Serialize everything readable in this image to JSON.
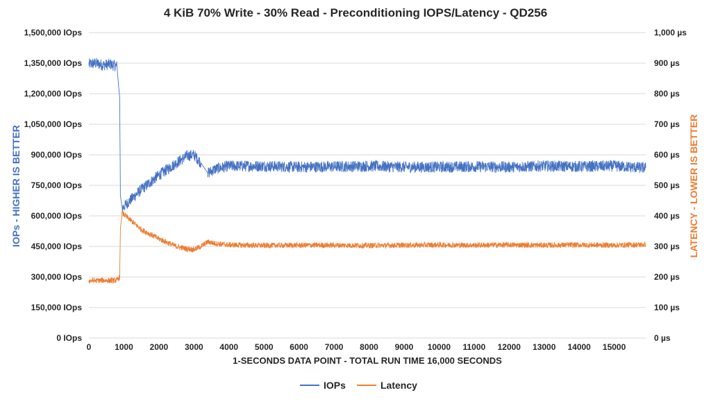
{
  "chart_data": {
    "type": "line",
    "title": "4 KiB 70% Write - 30% Read - Preconditioning IOPS/Latency - QD256",
    "xlabel": "1-SECONDS DATA POINT - TOTAL RUN TIME 16,000 SECONDS",
    "ylabel_left": "IOPs - HIGHER IS BETTER",
    "ylabel_right": "LATENCY - LOWER IS BETTER",
    "xlim": [
      0,
      15900
    ],
    "ylim_left": [
      0,
      1500000
    ],
    "ylim_right": [
      0,
      1000
    ],
    "x_ticks": [
      0,
      1000,
      2000,
      3000,
      4000,
      5000,
      6000,
      7000,
      8000,
      9000,
      10000,
      11000,
      12000,
      13000,
      14000,
      15000
    ],
    "x_tick_labels": [
      "0",
      "1000",
      "2000",
      "3000",
      "4000",
      "5000",
      "6000",
      "7000",
      "8000",
      "9000",
      "10000",
      "11000",
      "12000",
      "13000",
      "14000",
      "15000"
    ],
    "y_left_ticks": [
      0,
      150000,
      300000,
      450000,
      600000,
      750000,
      900000,
      1050000,
      1200000,
      1350000,
      1500000
    ],
    "y_left_tick_labels": [
      "0 IOps",
      "150,000 IOps",
      "300,000 IOps",
      "450,000 IOps",
      "600,000 IOps",
      "750,000 IOps",
      "900,000 IOps",
      "1,050,000 IOps",
      "1,200,000 IOps",
      "1,350,000 IOps",
      "1,500,000 IOps"
    ],
    "y_right_ticks": [
      0,
      100,
      200,
      300,
      400,
      500,
      600,
      700,
      800,
      900,
      1000
    ],
    "y_right_tick_labels": [
      "0 µs",
      "100 µs",
      "200 µs",
      "300 µs",
      "400 µs",
      "500 µs",
      "600 µs",
      "700 µs",
      "800 µs",
      "900 µs",
      "1,000 µs"
    ],
    "grid": true,
    "legend_position": "bottom",
    "series": [
      {
        "name": "IOPs",
        "axis": "left",
        "color": "#4472c4",
        "x": [
          0,
          200,
          400,
          600,
          800,
          880,
          900,
          950,
          1000,
          1200,
          1500,
          2000,
          2500,
          2800,
          3000,
          3200,
          3400,
          3600,
          4000,
          5000,
          6000,
          7000,
          8000,
          9000,
          10000,
          11000,
          12000,
          13000,
          14000,
          15000,
          15900
        ],
        "y": [
          1345000,
          1350000,
          1340000,
          1345000,
          1335000,
          1180000,
          700000,
          640000,
          645000,
          680000,
          730000,
          800000,
          860000,
          895000,
          900000,
          860000,
          810000,
          830000,
          845000,
          845000,
          840000,
          842000,
          845000,
          840000,
          840000,
          842000,
          840000,
          845000,
          842000,
          845000,
          835000
        ]
      },
      {
        "name": "Latency",
        "axis": "right",
        "color": "#ed7d31",
        "x": [
          0,
          200,
          400,
          600,
          800,
          880,
          900,
          950,
          1000,
          1200,
          1500,
          2000,
          2500,
          2800,
          3000,
          3200,
          3400,
          3600,
          4000,
          5000,
          6000,
          7000,
          8000,
          9000,
          10000,
          11000,
          12000,
          13000,
          14000,
          15000,
          15900
        ],
        "y": [
          188,
          188,
          189,
          188,
          189,
          200,
          360,
          408,
          405,
          385,
          355,
          325,
          300,
          292,
          290,
          300,
          315,
          310,
          305,
          303,
          304,
          304,
          303,
          304,
          305,
          304,
          305,
          304,
          305,
          304,
          306
        ]
      }
    ]
  }
}
